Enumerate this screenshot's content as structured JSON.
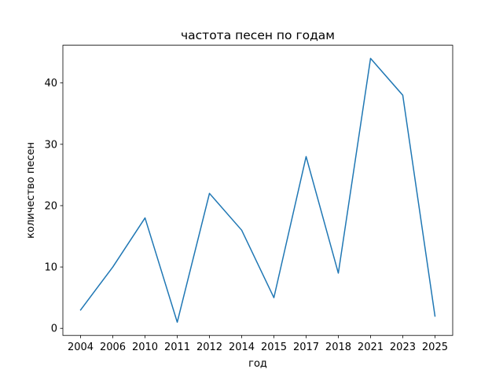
{
  "chart_data": {
    "type": "line",
    "title": "частота песен по годам",
    "xlabel": "год",
    "ylabel": "количество песен",
    "categories": [
      "2004",
      "2006",
      "2010",
      "2011",
      "2012",
      "2014",
      "2015",
      "2017",
      "2018",
      "2021",
      "2023",
      "2025"
    ],
    "series": [
      {
        "name": "количество песен",
        "values": [
          3,
          10,
          18,
          1,
          22,
          16,
          5,
          28,
          9,
          44,
          38,
          2
        ],
        "color": "#1f77b4"
      }
    ],
    "ylim": [
      -1.15,
      46.15
    ],
    "yticks": [
      0,
      10,
      20,
      30,
      40
    ],
    "grid": false,
    "legend": "none"
  }
}
